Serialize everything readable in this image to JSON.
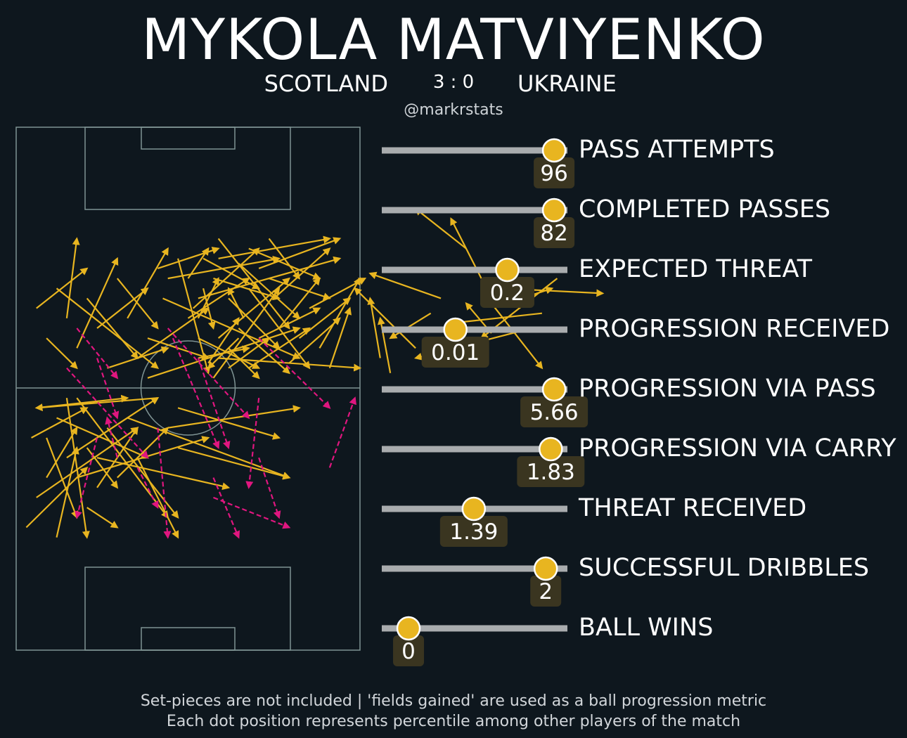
{
  "header": {
    "player_name": "MYKOLA MATVIYENKO",
    "home_team": "SCOTLAND",
    "score": "3 : 0",
    "away_team": "UKRAINE",
    "handle": "@markrstats"
  },
  "footer": {
    "line1": "Set-pieces are not included | 'fields gained' are used as a ball progression metric",
    "line2": "Each dot position represents percentile among other players of the match"
  },
  "colors": {
    "background": "#0e171e",
    "pitch_lines": "#7f9494",
    "pass": "#e8b520",
    "carry": "#e0167f",
    "track": "#a9acae",
    "dot": "#e8b520",
    "value_box": "#3a3520"
  },
  "chart_data": [
    {
      "type": "pitch-actions",
      "legend": [],
      "series": [
        {
          "name": "passes",
          "style": "solid",
          "color": "#e8b520",
          "actions": [
            [
              48,
              15,
              40,
              10
            ],
            [
              60,
              11,
              55,
              17
            ],
            [
              62,
              20,
              82,
              19
            ],
            [
              60,
              17,
              70,
              4
            ],
            [
              68,
              12,
              45,
              6
            ],
            [
              70,
              15,
              52,
              13
            ],
            [
              66,
              18,
              72,
              20
            ],
            [
              73,
              22,
              58,
              10
            ],
            [
              58,
              22,
              52,
              34
            ],
            [
              55,
              28,
              45,
              36
            ],
            [
              50,
              18,
              36,
              23
            ],
            [
              45,
              8,
              33,
              20
            ],
            [
              40,
              3,
              38,
              14
            ],
            [
              38,
              6,
              36,
              18
            ],
            [
              28,
              4,
              32,
              16
            ],
            [
              26,
              8,
              34,
              22
            ],
            [
              24,
              16,
              35,
              22
            ],
            [
              22,
              10,
              32,
              18
            ],
            [
              20,
              5,
              30,
              14
            ],
            [
              18,
              12,
              26,
              22
            ],
            [
              16,
              22,
              28,
              18
            ],
            [
              14,
              10,
              26,
              16
            ],
            [
              12,
              20,
              24,
              4
            ],
            [
              10,
              12,
              20,
              3
            ],
            [
              10,
              25,
              22,
              14
            ],
            [
              8,
              18,
              18,
              8
            ],
            [
              6,
              30,
              20,
              12
            ],
            [
              5,
              22,
              18,
              18
            ],
            [
              3,
              26,
              14,
              20
            ],
            [
              8,
              4,
              16,
              10
            ],
            [
              12,
              4,
              24,
              12
            ],
            [
              6,
              10,
              20,
              22
            ],
            [
              12,
              28,
              26,
              22
            ],
            [
              16,
              30,
              22,
              22
            ],
            [
              17,
              18,
              28,
              28
            ],
            [
              3,
              20,
              5,
              12
            ],
            [
              0,
              22,
              4,
              28
            ],
            [
              2,
              14,
              6,
              22
            ],
            [
              4,
              5,
              10,
              14
            ],
            [
              2,
              6,
              12,
              8
            ],
            [
              2,
              10,
              14,
              4
            ],
            [
              0,
              14,
              12,
              22
            ],
            [
              1,
              16,
              14,
              28
            ],
            [
              2,
              18,
              30,
              26
            ],
            [
              6,
              6,
              34,
              4
            ],
            [
              8,
              8,
              14,
              2
            ],
            [
              10,
              10,
              4,
              4
            ],
            [
              11,
              14,
              8,
              20
            ],
            [
              5,
              2,
              18,
              20
            ],
            [
              14,
              24,
              30,
              30
            ],
            [
              6,
              26,
              28,
              30
            ],
            [
              -6,
              24,
              6,
              28
            ],
            [
              -8,
              10,
              4,
              6
            ],
            [
              -10,
              6,
              4,
              16
            ],
            [
              -12,
              14,
              -4,
              28
            ],
            [
              -14,
              22,
              -6,
              12
            ],
            [
              -16,
              4,
              -4,
              8
            ],
            [
              -18,
              12,
              -8,
              20
            ],
            [
              -20,
              18,
              -10,
              6
            ],
            [
              -22,
              8,
              -14,
              26
            ],
            [
              -24,
              14,
              -22,
              30
            ],
            [
              -26,
              20,
              -6,
              4
            ],
            [
              -28,
              10,
              -22,
              4
            ],
            [
              -30,
              16,
              -20,
              24
            ],
            [
              -8,
              2,
              22,
              12
            ],
            [
              -5,
              18,
              22,
              6
            ],
            [
              -4,
              22,
              18,
              26
            ],
            [
              -2,
              26,
              4,
              3
            ],
            [
              -30,
              -22,
              -10,
              -8
            ],
            [
              -32,
              -28,
              -20,
              -16
            ],
            [
              -31,
              -10,
              -20,
              -4
            ],
            [
              -30,
              -4,
              -12,
              -2
            ],
            [
              -28,
              -18,
              -22,
              -8
            ],
            [
              -26,
              -6,
              -8,
              -14
            ],
            [
              -24,
              -14,
              -6,
              -2
            ],
            [
              -22,
              -2,
              -4,
              -26
            ],
            [
              -20,
              -12,
              -14,
              -20
            ],
            [
              -18,
              -20,
              -10,
              -8
            ],
            [
              -12,
              -6,
              20,
              -18
            ],
            [
              -16,
              -8,
              -2,
              -26
            ],
            [
              -14,
              -18,
              -4,
              -8
            ],
            [
              -20,
              -24,
              -14,
              -28
            ],
            [
              -10,
              -14,
              -2,
              -30
            ],
            [
              -28,
              -10,
              -22,
              -26
            ],
            [
              -6,
              -2,
              -30,
              -4
            ],
            [
              -4,
              -8,
              22,
              -4
            ],
            [
              -2,
              -12,
              20,
              -18
            ],
            [
              -2,
              -4,
              18,
              -10
            ],
            [
              -24,
              -2,
              -20,
              -30
            ],
            [
              -22,
              -18,
              4,
              -10
            ],
            [
              -18,
              -14,
              8,
              -20
            ],
            [
              -26,
              -30,
              -22,
              -12
            ]
          ]
        },
        {
          "name": "carries",
          "style": "dashed",
          "color": "#e0167f",
          "actions": [
            [
              5,
              -22,
              20,
              -28
            ],
            [
              -10,
              -16,
              -6,
              -24
            ],
            [
              -18,
              -10,
              -22,
              -26
            ],
            [
              14,
              -2,
              12,
              -20
            ],
            [
              5,
              -18,
              10,
              -30
            ],
            [
              28,
              -16,
              33,
              -2
            ],
            [
              -14,
              -14,
              -16,
              -6
            ],
            [
              -6,
              -8,
              -4,
              -30
            ],
            [
              14,
              -14,
              18,
              -26
            ],
            [
              -3,
              10,
              6,
              -12
            ],
            [
              -4,
              12,
              12,
              -6
            ],
            [
              2,
              6,
              8,
              -12
            ],
            [
              14,
              10,
              28,
              -4
            ],
            [
              -24,
              4,
              -8,
              -14
            ],
            [
              -18,
              6,
              -14,
              -6
            ],
            [
              -22,
              12,
              -14,
              2
            ]
          ]
        }
      ]
    },
    {
      "type": "percentile-dots",
      "metrics": [
        {
          "label": "PASS ATTEMPTS",
          "value": "96",
          "percentile": 0.95
        },
        {
          "label": "COMPLETED PASSES",
          "value": "82",
          "percentile": 0.95
        },
        {
          "label": "EXPECTED THREAT",
          "value": "0.2",
          "percentile": 0.67
        },
        {
          "label": "PROGRESSION RECEIVED",
          "value": "0.01",
          "percentile": 0.36
        },
        {
          "label": "PROGRESSION VIA PASS",
          "value": "5.66",
          "percentile": 0.95
        },
        {
          "label": "PROGRESSION VIA CARRY",
          "value": "1.83",
          "percentile": 0.93
        },
        {
          "label": "THREAT RECEIVED",
          "value": "1.39",
          "percentile": 0.47
        },
        {
          "label": "SUCCESSFUL DRIBBLES",
          "value": "2",
          "percentile": 0.9
        },
        {
          "label": "BALL WINS",
          "value": "0",
          "percentile": 0.08
        }
      ]
    }
  ]
}
